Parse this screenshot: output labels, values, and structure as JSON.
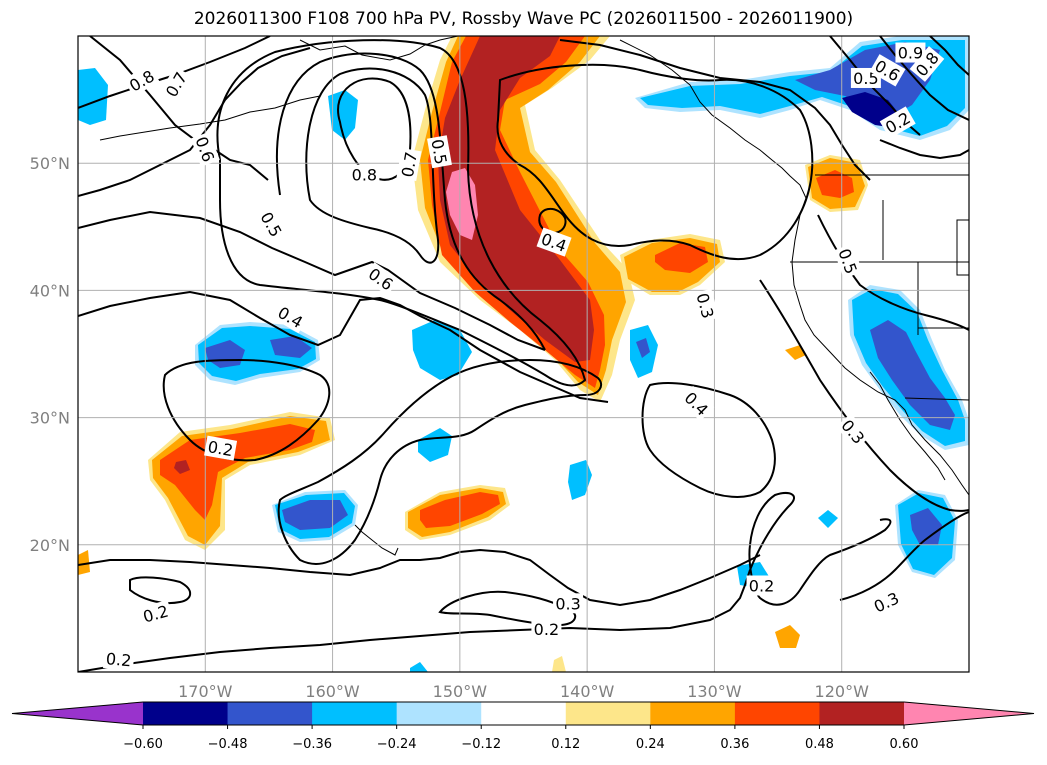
{
  "title": "2026011300 F108 700 hPa PV, Rossby Wave PC (2026011500 - 2026011900)",
  "map": {
    "lat_range": [
      10,
      60
    ],
    "lon_range": [
      -180,
      -110
    ],
    "lat_ticks": [
      {
        "value": 50,
        "label": "50°N"
      },
      {
        "value": 40,
        "label": "40°N"
      },
      {
        "value": 30,
        "label": "30°N"
      },
      {
        "value": 20,
        "label": "20°N"
      }
    ],
    "lon_ticks": [
      {
        "value": -170,
        "label": "170°W"
      },
      {
        "value": -160,
        "label": "160°W"
      },
      {
        "value": -150,
        "label": "150°W"
      },
      {
        "value": -140,
        "label": "140°W"
      },
      {
        "value": -130,
        "label": "130°W"
      },
      {
        "value": -120,
        "label": "120°W"
      }
    ],
    "gridlines": true
  },
  "colorbar": {
    "extend": "both",
    "colors": [
      "#9933cc",
      "#00008b",
      "#3355cc",
      "#00bfff",
      "#aee3ff",
      "#ffffff",
      "#fde68a",
      "#ffa500",
      "#ff4500",
      "#b22222",
      "#ff85b0"
    ],
    "boundaries": [
      -0.6,
      -0.48,
      -0.36,
      -0.24,
      -0.12,
      0.12,
      0.24,
      0.36,
      0.48,
      0.6
    ],
    "tick_labels": [
      "−0.60",
      "−0.48",
      "−0.36",
      "−0.24",
      "−0.12",
      "0.12",
      "0.24",
      "0.36",
      "0.48",
      "0.60"
    ]
  },
  "contour_labels": [
    {
      "text": "0.8",
      "lon": -175,
      "lat": 56.5,
      "rot": -30
    },
    {
      "text": "0.7",
      "lon": -172.3,
      "lat": 56.2,
      "rot": -60
    },
    {
      "text": "0.6",
      "lon": -170,
      "lat": 51.1,
      "rot": 70
    },
    {
      "text": "0.5",
      "lon": -164.8,
      "lat": 45.2,
      "rot": 60
    },
    {
      "text": "0.8",
      "lon": -157.5,
      "lat": 49.1,
      "rot": 0
    },
    {
      "text": "0.7",
      "lon": -154,
      "lat": 49.9,
      "rot": -80
    },
    {
      "text": "0.5",
      "lon": -151.6,
      "lat": 50.9,
      "rot": 80
    },
    {
      "text": "0.6",
      "lon": -156.2,
      "lat": 40.9,
      "rot": 35
    },
    {
      "text": "0.4",
      "lon": -142.6,
      "lat": 43.8,
      "rot": 20
    },
    {
      "text": "0.4",
      "lon": -163.3,
      "lat": 37.9,
      "rot": 30
    },
    {
      "text": "0.2",
      "lon": -168.8,
      "lat": 27.6,
      "rot": 10
    },
    {
      "text": "0.2",
      "lon": -173.9,
      "lat": 14.6,
      "rot": -15
    },
    {
      "text": "0.2",
      "lon": -176.8,
      "lat": 11,
      "rot": 5
    },
    {
      "text": "0.3",
      "lon": -130.7,
      "lat": 38.8,
      "rot": 75
    },
    {
      "text": "0.4",
      "lon": -131.4,
      "lat": 31.1,
      "rot": 45
    },
    {
      "text": "0.3",
      "lon": -141.5,
      "lat": 15.4,
      "rot": 0
    },
    {
      "text": "0.2",
      "lon": -143.2,
      "lat": 13.4,
      "rot": 0
    },
    {
      "text": "0.2",
      "lon": -126.3,
      "lat": 16.8,
      "rot": 0
    },
    {
      "text": "0.3",
      "lon": -116.5,
      "lat": 15.5,
      "rot": -25
    },
    {
      "text": "0.3",
      "lon": -119.1,
      "lat": 28.9,
      "rot": 50
    },
    {
      "text": "0.5",
      "lon": -119.5,
      "lat": 42.3,
      "rot": 70
    },
    {
      "text": "0.5",
      "lon": -118.1,
      "lat": 56.7,
      "rot": 0
    },
    {
      "text": "0.6",
      "lon": -116.4,
      "lat": 57.3,
      "rot": 30
    },
    {
      "text": "0.8",
      "lon": -113.3,
      "lat": 57.8,
      "rot": -50
    },
    {
      "text": "0.9",
      "lon": -114.6,
      "lat": 58.7,
      "rot": 0
    },
    {
      "text": "0.2",
      "lon": -115.6,
      "lat": 53.2,
      "rot": -30
    }
  ]
}
